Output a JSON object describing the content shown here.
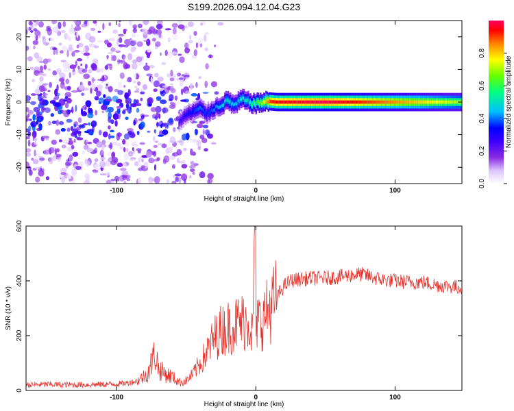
{
  "title": "S199.2026.094.12.04.G23",
  "chart_data": [
    {
      "type": "heatmap",
      "name": "spectrogram",
      "xlabel": "Height of straight line (km)",
      "ylabel": "Frequency (Hz)",
      "xlim": [
        -165,
        148
      ],
      "ylim": [
        -25,
        25
      ],
      "xticks": [
        -100,
        0,
        100
      ],
      "yticks": [
        -20,
        -10,
        0,
        10,
        20
      ],
      "colorbar": {
        "label": "Normalized spectral amplitude",
        "range": [
          0,
          1
        ],
        "ticks": [
          "0.0",
          "0.2",
          "0.4",
          "0.6",
          "0.8"
        ],
        "colors": [
          "#ffffff",
          "#dcc4ff",
          "#8a2be2",
          "#3b00ff",
          "#0000ff",
          "#00bfff",
          "#00ff80",
          "#66ff00",
          "#ffff00",
          "#ff8000",
          "#ff0000",
          "#ff0060"
        ]
      },
      "ridge": {
        "description": "dominant frequency track",
        "x": [
          -55,
          -50,
          -45,
          -40,
          -35,
          -30,
          -25,
          -20,
          -15,
          -10,
          -5,
          0,
          5,
          10,
          15,
          50,
          100,
          148
        ],
        "y": [
          -6,
          -4,
          -3,
          -2,
          -3.5,
          -2,
          -1,
          0.5,
          -1,
          1,
          0,
          -0.5,
          0,
          0.2,
          0,
          0,
          0,
          0
        ],
        "amplitude": [
          0.25,
          0.3,
          0.35,
          0.4,
          0.35,
          0.4,
          0.45,
          0.5,
          0.45,
          0.5,
          0.5,
          0.6,
          0.7,
          0.9,
          0.95,
          1.0,
          0.85,
          0.7
        ]
      }
    },
    {
      "type": "line",
      "name": "snr",
      "xlabel": "Height of straight line (km)",
      "ylabel": "SNR (10 * v/v)",
      "xlim": [
        -165,
        148
      ],
      "ylim": [
        0,
        600
      ],
      "xticks": [
        -100,
        0,
        100
      ],
      "yticks": [
        0,
        200,
        400,
        600
      ],
      "color": "#e8302a",
      "x": [
        -165,
        -150,
        -130,
        -110,
        -95,
        -85,
        -78,
        -75,
        -72,
        -70,
        -65,
        -60,
        -55,
        -50,
        -45,
        -40,
        -35,
        -30,
        -25,
        -20,
        -15,
        -10,
        -5,
        -2,
        -1,
        0,
        1,
        3,
        5,
        10,
        15,
        20,
        25,
        30,
        40,
        50,
        60,
        75,
        90,
        100,
        110,
        120,
        130,
        140,
        148
      ],
      "y": [
        20,
        22,
        20,
        22,
        25,
        35,
        60,
        100,
        140,
        80,
        60,
        50,
        30,
        35,
        60,
        100,
        140,
        190,
        220,
        230,
        240,
        250,
        260,
        200,
        600,
        120,
        260,
        250,
        260,
        300,
        340,
        380,
        400,
        405,
        410,
        410,
        415,
        425,
        405,
        400,
        395,
        395,
        385,
        380,
        375
      ]
    }
  ]
}
